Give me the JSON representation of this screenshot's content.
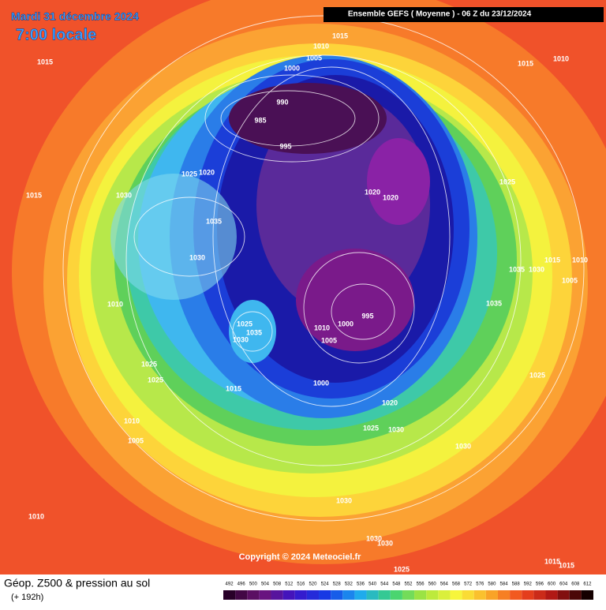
{
  "header": {
    "date": "Mardi 31 décembre 2024",
    "time": "7:00 locale",
    "run": "Ensemble GEFS  ( Moyenne )  -  06 Z du 23/12/2024"
  },
  "copyright": "Copyright © 2024 Meteociel.fr",
  "footer": {
    "title": "Géop. Z500 & pression au sol",
    "lead": "(+ 192h)"
  },
  "isobar_labels": [
    1015,
    1010,
    1005,
    1000,
    990,
    985,
    995,
    1015,
    1015,
    1010,
    1025,
    1020,
    1030,
    1015,
    1020,
    1020,
    1025,
    1035,
    1030,
    1015,
    1010,
    1035,
    1030,
    1005,
    1010,
    1035,
    995,
    1000,
    1010,
    1025,
    1035,
    1030,
    1005,
    1025,
    1025,
    1025,
    1015,
    1000,
    1020,
    1010,
    1005,
    1025,
    1030,
    1030,
    1030,
    1010,
    1030,
    1030,
    1015,
    1015,
    1025
  ],
  "scale": [
    492,
    496,
    500,
    504,
    508,
    512,
    516,
    520,
    524,
    528,
    532,
    536,
    540,
    544,
    548,
    552,
    556,
    560,
    564,
    568,
    572,
    576,
    580,
    584,
    588,
    592,
    596,
    600,
    604,
    608,
    612
  ]
}
